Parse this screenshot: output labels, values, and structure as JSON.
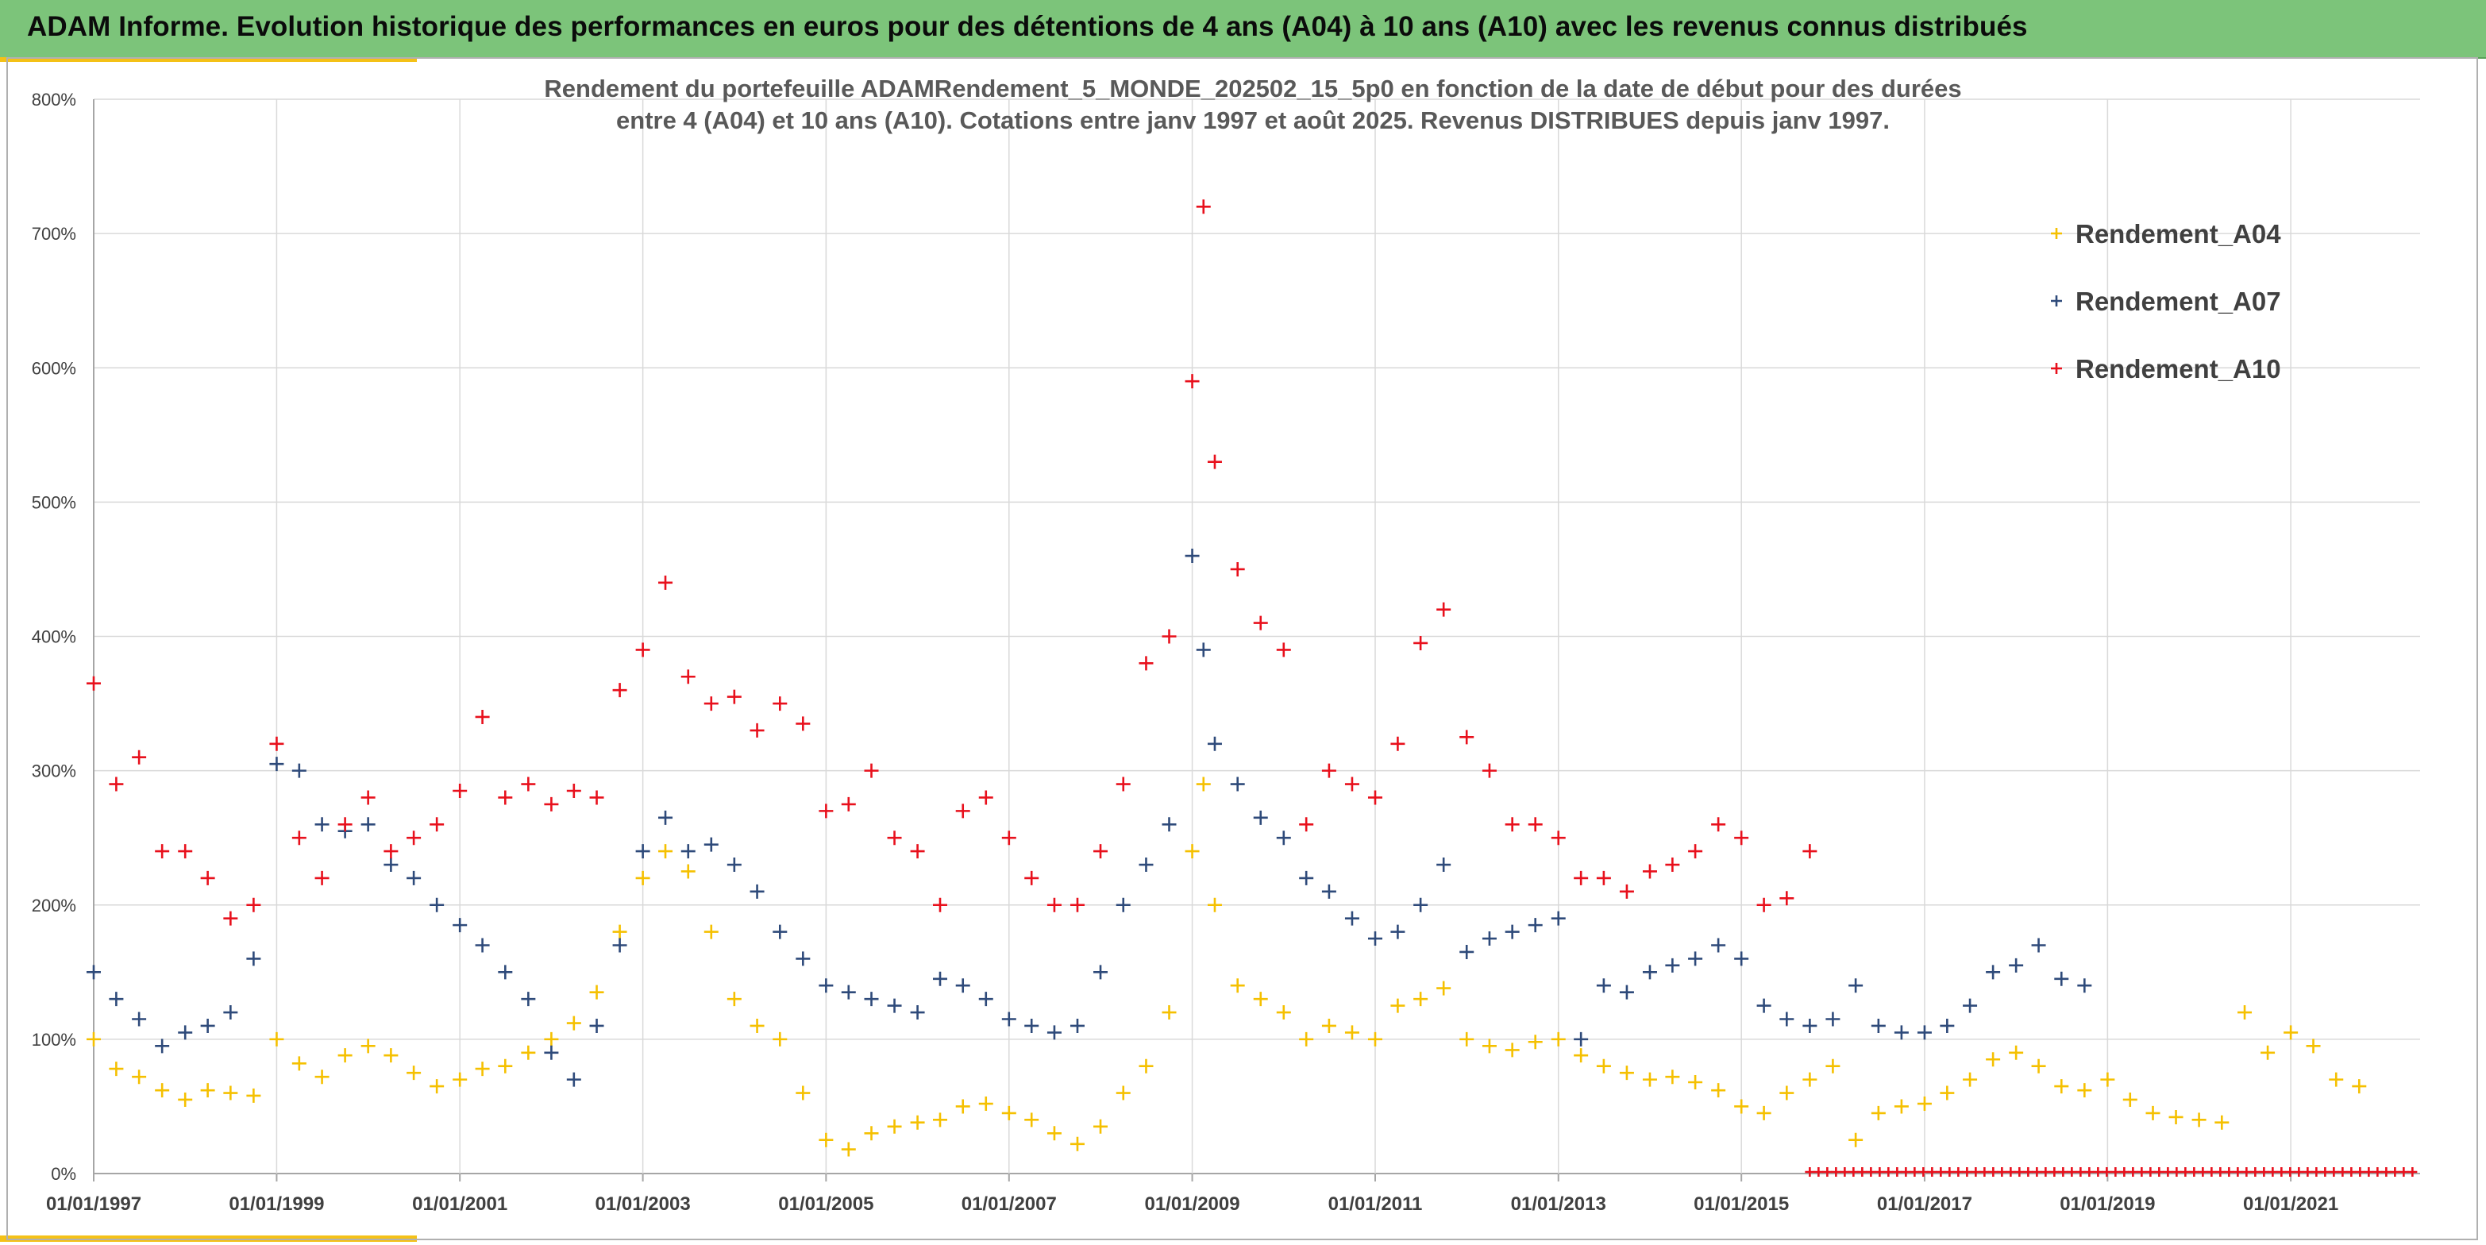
{
  "banner": {
    "title": "ADAM Informe. Evolution historique des performances en euros pour des détentions de 4 ans (A04) à 10 ans (A10) avec les revenus connus distribués",
    "background": "#7cc47a",
    "accent": "#f4c117"
  },
  "chart_data": {
    "type": "scatter",
    "title_lines": [
      "Rendement du portefeuille ADAMRendement_5_MONDE_202502_15_5p0  en fonction de la date de début pour des durées",
      "entre 4 (A04) et 10 ans (A10). Cotations entre janv 1997 et août 2025. Revenus DISTRIBUES depuis janv 1997."
    ],
    "xlabel": "",
    "ylabel": "",
    "x_type": "date",
    "xlim": [
      "1997-01-01",
      "2022-06-01"
    ],
    "ylim": [
      0,
      800
    ],
    "y_ticks": [
      0,
      100,
      200,
      300,
      400,
      500,
      600,
      700,
      800
    ],
    "y_tick_labels": [
      "0%",
      "100%",
      "200%",
      "300%",
      "400%",
      "500%",
      "600%",
      "700%",
      "800%"
    ],
    "x_ticks": [
      "1997-01-01",
      "1999-01-01",
      "2001-01-01",
      "2003-01-01",
      "2005-01-01",
      "2007-01-01",
      "2009-01-01",
      "2011-01-01",
      "2013-01-01",
      "2015-01-01",
      "2017-01-01",
      "2019-01-01",
      "2021-01-01"
    ],
    "x_tick_labels": [
      "01/01/1997",
      "01/01/1999",
      "01/01/2001",
      "01/01/2003",
      "01/01/2005",
      "01/01/2007",
      "01/01/2009",
      "01/01/2011",
      "01/01/2013",
      "01/01/2015",
      "01/01/2017",
      "01/01/2019",
      "01/01/2021"
    ],
    "grid": true,
    "legend_position": "top-right",
    "marker": "plus",
    "series": [
      {
        "name": "Rendement_A04",
        "color": "#f5c000",
        "points": [
          [
            "1997-01-01",
            100
          ],
          [
            "1997-04-01",
            78
          ],
          [
            "1997-07-01",
            72
          ],
          [
            "1997-10-01",
            62
          ],
          [
            "1998-01-01",
            55
          ],
          [
            "1998-04-01",
            62
          ],
          [
            "1998-07-01",
            60
          ],
          [
            "1998-10-01",
            58
          ],
          [
            "1999-01-01",
            100
          ],
          [
            "1999-04-01",
            82
          ],
          [
            "1999-07-01",
            72
          ],
          [
            "1999-10-01",
            88
          ],
          [
            "2000-01-01",
            95
          ],
          [
            "2000-04-01",
            88
          ],
          [
            "2000-07-01",
            75
          ],
          [
            "2000-10-01",
            65
          ],
          [
            "2001-01-01",
            70
          ],
          [
            "2001-04-01",
            78
          ],
          [
            "2001-07-01",
            80
          ],
          [
            "2001-10-01",
            90
          ],
          [
            "2002-01-01",
            100
          ],
          [
            "2002-04-01",
            112
          ],
          [
            "2002-07-01",
            135
          ],
          [
            "2002-10-01",
            180
          ],
          [
            "2003-01-01",
            220
          ],
          [
            "2003-04-01",
            240
          ],
          [
            "2003-07-01",
            225
          ],
          [
            "2003-10-01",
            180
          ],
          [
            "2004-01-01",
            130
          ],
          [
            "2004-04-01",
            110
          ],
          [
            "2004-07-01",
            100
          ],
          [
            "2004-10-01",
            60
          ],
          [
            "2005-01-01",
            25
          ],
          [
            "2005-04-01",
            18
          ],
          [
            "2005-07-01",
            30
          ],
          [
            "2005-10-01",
            35
          ],
          [
            "2006-01-01",
            38
          ],
          [
            "2006-04-01",
            40
          ],
          [
            "2006-07-01",
            50
          ],
          [
            "2006-10-01",
            52
          ],
          [
            "2007-01-01",
            45
          ],
          [
            "2007-04-01",
            40
          ],
          [
            "2007-07-01",
            30
          ],
          [
            "2007-10-01",
            22
          ],
          [
            "2008-01-01",
            35
          ],
          [
            "2008-04-01",
            60
          ],
          [
            "2008-07-01",
            80
          ],
          [
            "2008-10-01",
            120
          ],
          [
            "2009-01-01",
            240
          ],
          [
            "2009-02-15",
            290
          ],
          [
            "2009-04-01",
            200
          ],
          [
            "2009-07-01",
            140
          ],
          [
            "2009-10-01",
            130
          ],
          [
            "2010-01-01",
            120
          ],
          [
            "2010-04-01",
            100
          ],
          [
            "2010-07-01",
            110
          ],
          [
            "2010-10-01",
            105
          ],
          [
            "2011-01-01",
            100
          ],
          [
            "2011-04-01",
            125
          ],
          [
            "2011-07-01",
            130
          ],
          [
            "2011-10-01",
            138
          ],
          [
            "2012-01-01",
            100
          ],
          [
            "2012-04-01",
            95
          ],
          [
            "2012-07-01",
            92
          ],
          [
            "2012-10-01",
            98
          ],
          [
            "2013-01-01",
            100
          ],
          [
            "2013-04-01",
            88
          ],
          [
            "2013-07-01",
            80
          ],
          [
            "2013-10-01",
            75
          ],
          [
            "2014-01-01",
            70
          ],
          [
            "2014-04-01",
            72
          ],
          [
            "2014-07-01",
            68
          ],
          [
            "2014-10-01",
            62
          ],
          [
            "2015-01-01",
            50
          ],
          [
            "2015-04-01",
            45
          ],
          [
            "2015-07-01",
            60
          ],
          [
            "2015-10-01",
            70
          ],
          [
            "2016-01-01",
            80
          ],
          [
            "2016-04-01",
            25
          ],
          [
            "2016-07-01",
            45
          ],
          [
            "2016-10-01",
            50
          ],
          [
            "2017-01-01",
            52
          ],
          [
            "2017-04-01",
            60
          ],
          [
            "2017-07-01",
            70
          ],
          [
            "2017-10-01",
            85
          ],
          [
            "2018-01-01",
            90
          ],
          [
            "2018-04-01",
            80
          ],
          [
            "2018-07-01",
            65
          ],
          [
            "2018-10-01",
            62
          ],
          [
            "2019-01-01",
            70
          ],
          [
            "2019-04-01",
            55
          ],
          [
            "2019-07-01",
            45
          ],
          [
            "2019-10-01",
            42
          ],
          [
            "2020-01-01",
            40
          ],
          [
            "2020-04-01",
            38
          ],
          [
            "2020-07-01",
            120
          ],
          [
            "2020-10-01",
            90
          ],
          [
            "2021-01-01",
            105
          ],
          [
            "2021-04-01",
            95
          ],
          [
            "2021-07-01",
            70
          ],
          [
            "2021-10-01",
            65
          ]
        ]
      },
      {
        "name": "Rendement_A07",
        "color": "#2e4a7a",
        "points": [
          [
            "1997-01-01",
            150
          ],
          [
            "1997-04-01",
            130
          ],
          [
            "1997-07-01",
            115
          ],
          [
            "1997-10-01",
            95
          ],
          [
            "1998-01-01",
            105
          ],
          [
            "1998-04-01",
            110
          ],
          [
            "1998-07-01",
            120
          ],
          [
            "1998-10-01",
            160
          ],
          [
            "1999-01-01",
            305
          ],
          [
            "1999-04-01",
            300
          ],
          [
            "1999-07-01",
            260
          ],
          [
            "1999-10-01",
            255
          ],
          [
            "2000-01-01",
            260
          ],
          [
            "2000-04-01",
            230
          ],
          [
            "2000-07-01",
            220
          ],
          [
            "2000-10-01",
            200
          ],
          [
            "2001-01-01",
            185
          ],
          [
            "2001-04-01",
            170
          ],
          [
            "2001-07-01",
            150
          ],
          [
            "2001-10-01",
            130
          ],
          [
            "2002-01-01",
            90
          ],
          [
            "2002-04-01",
            70
          ],
          [
            "2002-07-01",
            110
          ],
          [
            "2002-10-01",
            170
          ],
          [
            "2003-01-01",
            240
          ],
          [
            "2003-04-01",
            265
          ],
          [
            "2003-07-01",
            240
          ],
          [
            "2003-10-01",
            245
          ],
          [
            "2004-01-01",
            230
          ],
          [
            "2004-04-01",
            210
          ],
          [
            "2004-07-01",
            180
          ],
          [
            "2004-10-01",
            160
          ],
          [
            "2005-01-01",
            140
          ],
          [
            "2005-04-01",
            135
          ],
          [
            "2005-07-01",
            130
          ],
          [
            "2005-10-01",
            125
          ],
          [
            "2006-01-01",
            120
          ],
          [
            "2006-04-01",
            145
          ],
          [
            "2006-07-01",
            140
          ],
          [
            "2006-10-01",
            130
          ],
          [
            "2007-01-01",
            115
          ],
          [
            "2007-04-01",
            110
          ],
          [
            "2007-07-01",
            105
          ],
          [
            "2007-10-01",
            110
          ],
          [
            "2008-01-01",
            150
          ],
          [
            "2008-04-01",
            200
          ],
          [
            "2008-07-01",
            230
          ],
          [
            "2008-10-01",
            260
          ],
          [
            "2009-01-01",
            460
          ],
          [
            "2009-02-15",
            390
          ],
          [
            "2009-04-01",
            320
          ],
          [
            "2009-07-01",
            290
          ],
          [
            "2009-10-01",
            265
          ],
          [
            "2010-01-01",
            250
          ],
          [
            "2010-04-01",
            220
          ],
          [
            "2010-07-01",
            210
          ],
          [
            "2010-10-01",
            190
          ],
          [
            "2011-01-01",
            175
          ],
          [
            "2011-04-01",
            180
          ],
          [
            "2011-07-01",
            200
          ],
          [
            "2011-10-01",
            230
          ],
          [
            "2012-01-01",
            165
          ],
          [
            "2012-04-01",
            175
          ],
          [
            "2012-07-01",
            180
          ],
          [
            "2012-10-01",
            185
          ],
          [
            "2013-01-01",
            190
          ],
          [
            "2013-04-01",
            100
          ],
          [
            "2013-07-01",
            140
          ],
          [
            "2013-10-01",
            135
          ],
          [
            "2014-01-01",
            150
          ],
          [
            "2014-04-01",
            155
          ],
          [
            "2014-07-01",
            160
          ],
          [
            "2014-10-01",
            170
          ],
          [
            "2015-01-01",
            160
          ],
          [
            "2015-04-01",
            125
          ],
          [
            "2015-07-01",
            115
          ],
          [
            "2015-10-01",
            110
          ],
          [
            "2016-01-01",
            115
          ],
          [
            "2016-04-01",
            140
          ],
          [
            "2016-07-01",
            110
          ],
          [
            "2016-10-01",
            105
          ],
          [
            "2017-01-01",
            105
          ],
          [
            "2017-04-01",
            110
          ],
          [
            "2017-07-01",
            125
          ],
          [
            "2017-10-01",
            150
          ],
          [
            "2018-01-01",
            155
          ],
          [
            "2018-04-01",
            170
          ],
          [
            "2018-07-01",
            145
          ],
          [
            "2018-10-01",
            140
          ]
        ]
      },
      {
        "name": "Rendement_A10",
        "color": "#e8101c",
        "points": [
          [
            "1997-01-01",
            365
          ],
          [
            "1997-04-01",
            290
          ],
          [
            "1997-07-01",
            310
          ],
          [
            "1997-10-01",
            240
          ],
          [
            "1998-01-01",
            240
          ],
          [
            "1998-04-01",
            220
          ],
          [
            "1998-07-01",
            190
          ],
          [
            "1998-10-01",
            200
          ],
          [
            "1999-01-01",
            320
          ],
          [
            "1999-04-01",
            250
          ],
          [
            "1999-07-01",
            220
          ],
          [
            "1999-10-01",
            260
          ],
          [
            "2000-01-01",
            280
          ],
          [
            "2000-04-01",
            240
          ],
          [
            "2000-07-01",
            250
          ],
          [
            "2000-10-01",
            260
          ],
          [
            "2001-01-01",
            285
          ],
          [
            "2001-04-01",
            340
          ],
          [
            "2001-07-01",
            280
          ],
          [
            "2001-10-01",
            290
          ],
          [
            "2002-01-01",
            275
          ],
          [
            "2002-04-01",
            285
          ],
          [
            "2002-07-01",
            280
          ],
          [
            "2002-10-01",
            360
          ],
          [
            "2003-01-01",
            390
          ],
          [
            "2003-04-01",
            440
          ],
          [
            "2003-07-01",
            370
          ],
          [
            "2003-10-01",
            350
          ],
          [
            "2004-01-01",
            355
          ],
          [
            "2004-04-01",
            330
          ],
          [
            "2004-07-01",
            350
          ],
          [
            "2004-10-01",
            335
          ],
          [
            "2005-01-01",
            270
          ],
          [
            "2005-04-01",
            275
          ],
          [
            "2005-07-01",
            300
          ],
          [
            "2005-10-01",
            250
          ],
          [
            "2006-01-01",
            240
          ],
          [
            "2006-04-01",
            200
          ],
          [
            "2006-07-01",
            270
          ],
          [
            "2006-10-01",
            280
          ],
          [
            "2007-01-01",
            250
          ],
          [
            "2007-04-01",
            220
          ],
          [
            "2007-07-01",
            200
          ],
          [
            "2007-10-01",
            200
          ],
          [
            "2008-01-01",
            240
          ],
          [
            "2008-04-01",
            290
          ],
          [
            "2008-07-01",
            380
          ],
          [
            "2008-10-01",
            400
          ],
          [
            "2009-01-01",
            590
          ],
          [
            "2009-02-15",
            720
          ],
          [
            "2009-04-01",
            530
          ],
          [
            "2009-07-01",
            450
          ],
          [
            "2009-10-01",
            410
          ],
          [
            "2010-01-01",
            390
          ],
          [
            "2010-04-01",
            260
          ],
          [
            "2010-07-01",
            300
          ],
          [
            "2010-10-01",
            290
          ],
          [
            "2011-01-01",
            280
          ],
          [
            "2011-04-01",
            320
          ],
          [
            "2011-07-01",
            395
          ],
          [
            "2011-10-01",
            420
          ],
          [
            "2012-01-01",
            325
          ],
          [
            "2012-04-01",
            300
          ],
          [
            "2012-07-01",
            260
          ],
          [
            "2012-10-01",
            260
          ],
          [
            "2013-01-01",
            250
          ],
          [
            "2013-04-01",
            220
          ],
          [
            "2013-07-01",
            220
          ],
          [
            "2013-10-01",
            210
          ],
          [
            "2014-01-01",
            225
          ],
          [
            "2014-04-01",
            230
          ],
          [
            "2014-07-01",
            240
          ],
          [
            "2014-10-01",
            260
          ],
          [
            "2015-01-01",
            250
          ],
          [
            "2015-04-01",
            200
          ],
          [
            "2015-07-01",
            205
          ],
          [
            "2015-10-01",
            240
          ]
        ],
        "baseline_segment": {
          "from": "2015-10-01",
          "to": "2022-06-01",
          "value": 0
        }
      }
    ]
  }
}
